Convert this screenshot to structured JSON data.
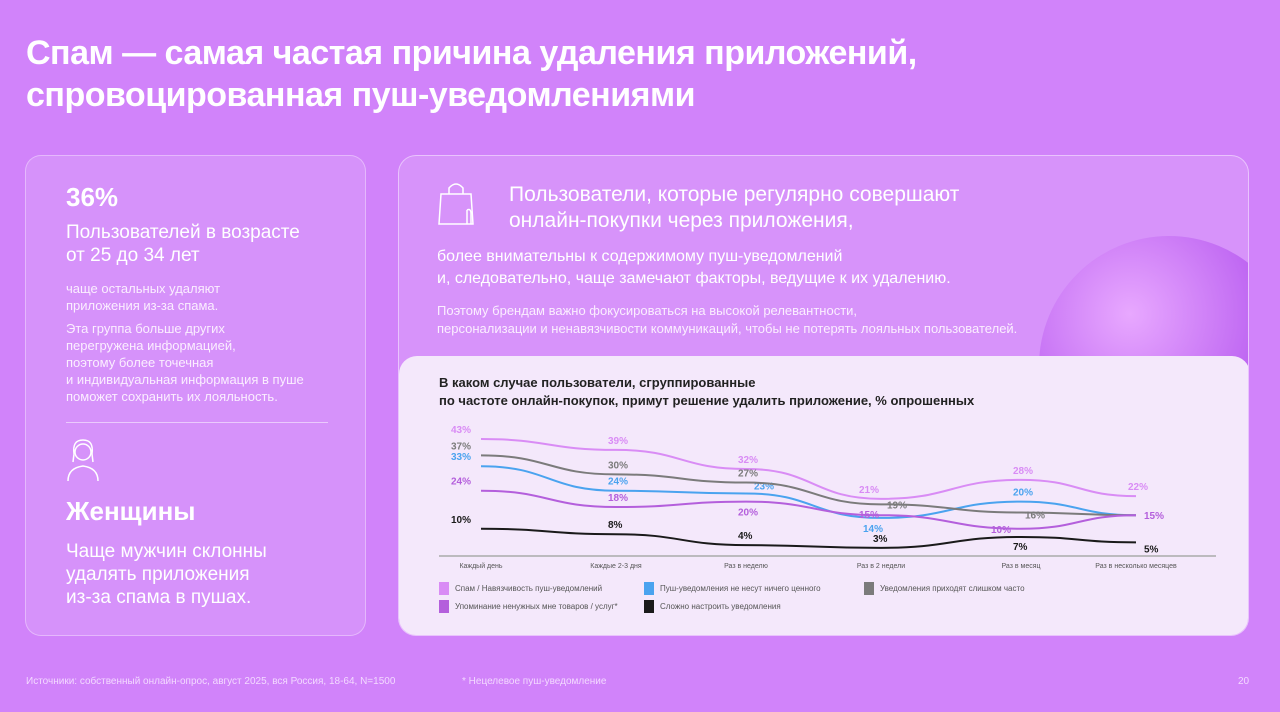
{
  "title": [
    "Спам — самая частая причина удаления приложений,",
    "спровоцированная пуш-уведомлениями"
  ],
  "left": {
    "stat": "36%",
    "stat_text": [
      "Пользователей в возрасте",
      "от 25 до 34 лет"
    ],
    "stat_sub": [
      "чаще остальных удаляют",
      "приложения из-за спама."
    ],
    "stat_note": [
      "Эта группа больше других",
      "перегружена информацией,",
      "поэтому более точечная",
      "и индивидуальная информация в пуше",
      "поможет сохранить их лояльность."
    ],
    "icon": "woman-icon",
    "head2": "Женщины",
    "text2": [
      "Чаще мужчин склонны",
      "удалять приложения",
      "из-за спама в пушах."
    ]
  },
  "right": {
    "icon": "shopping-bag-icon",
    "heading": [
      "Пользователи, которые регулярно совершают",
      "онлайн-покупки через приложения,"
    ],
    "sub": [
      "более внимательны к содержимому пуш-уведомлений",
      "и, следовательно, чаще замечают факторы, ведущие к их удалению."
    ],
    "note": [
      "Поэтому брендам важно фокусироваться на высокой релевантности,",
      "персонализации и ненавязчивости коммуникаций, чтобы не потерять лояльных пользователей."
    ]
  },
  "chart_data": {
    "type": "line",
    "title": [
      "В каком случае пользователи, сгруппированные",
      "по частоте онлайн-покупок, примут решение удалить приложение, % опрошенных"
    ],
    "categories": [
      "Каждый день",
      "Каждые 2-3 дня",
      "Раз в неделю",
      "Раз в 2 недели",
      "Раз в месяц",
      "Раз в несколько месяцев"
    ],
    "ylim": [
      0,
      45
    ],
    "grid": false,
    "legend_position": "bottom",
    "series": [
      {
        "name": "Спам / Навязчивость пуш-уведомлений",
        "color": "#d98cf5",
        "values": [
          43,
          39,
          32,
          21,
          28,
          22
        ],
        "labels": [
          "43%",
          "39%",
          "32%",
          "21%",
          "28%",
          "22%"
        ]
      },
      {
        "name": "Пуш-уведомления не несут ничего ценного",
        "color": "#4aa3ef",
        "values": [
          33,
          24,
          23,
          14,
          20,
          15
        ],
        "labels": [
          "33%",
          "24%",
          "23%",
          "14%",
          "20%",
          ""
        ]
      },
      {
        "name": "Уведомления приходят слишком часто",
        "color": "#7b7b7b",
        "values": [
          37,
          30,
          27,
          19,
          16,
          15
        ],
        "labels": [
          "37%",
          "30%",
          "27%",
          "19%",
          "16%",
          ""
        ]
      },
      {
        "name": "Упоминание ненужных мне товаров / услуг*",
        "color": "#b45fdc",
        "values": [
          24,
          18,
          20,
          15,
          10,
          15
        ],
        "labels": [
          "24%",
          "18%",
          "20%",
          "15%",
          "10%",
          "15%"
        ]
      },
      {
        "name": "Сложно настроить уведомления",
        "color": "#1a1a1a",
        "values": [
          10,
          8,
          4,
          3,
          7,
          5
        ],
        "labels": [
          "10%",
          "8%",
          "4%",
          "3%",
          "7%",
          "5%"
        ]
      }
    ]
  },
  "footer": {
    "source": "Источники: собственный онлайн-опрос, август 2025, вся Россия, 18-64, N=1500",
    "footnote": "* Нецелевое пуш-уведомление",
    "page": "20"
  }
}
